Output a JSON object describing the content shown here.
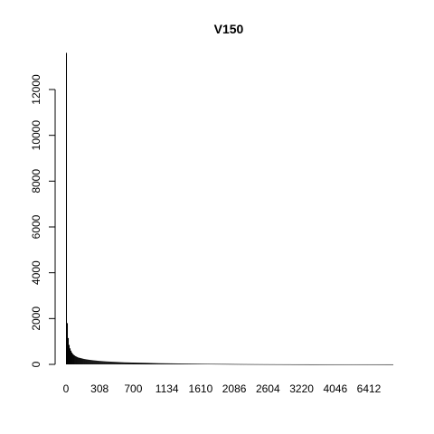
{
  "chart_data": {
    "type": "bar",
    "title": "V150",
    "xlabel": "",
    "ylabel": "",
    "ylim": [
      0,
      13500
    ],
    "y_ticks": [
      0,
      2000,
      4000,
      6000,
      8000,
      10000,
      12000
    ],
    "x_tick_labels": [
      "0",
      "308",
      "700",
      "1134",
      "1610",
      "2086",
      "2604",
      "3220",
      "4046",
      "6412"
    ],
    "bar_count": 360,
    "bar_color": "#000000",
    "grid": false,
    "legend": "none",
    "values_description_note": "",
    "values": [
      13600,
      1800,
      1150,
      850,
      700,
      600,
      520,
      460,
      420,
      390,
      360,
      340,
      320,
      300,
      290,
      280,
      270,
      260,
      250,
      240,
      232,
      225,
      218,
      212,
      206,
      200,
      195,
      190,
      185,
      180,
      176,
      172,
      168,
      164,
      160,
      156,
      152,
      149,
      146,
      143,
      140,
      137,
      134,
      131,
      128,
      126,
      124,
      122,
      120,
      118,
      116,
      114,
      112,
      110,
      108,
      106,
      104,
      102,
      100,
      98,
      96,
      94,
      92,
      90,
      88,
      87,
      86,
      85,
      84,
      83,
      82,
      81,
      80,
      79,
      78,
      77,
      76,
      75,
      74,
      73,
      72,
      71,
      70,
      69,
      68,
      67,
      66,
      65,
      64,
      63,
      62,
      61,
      60,
      59,
      58,
      57,
      56,
      55,
      54,
      53,
      52,
      51,
      50,
      50,
      49,
      49,
      48,
      48,
      47,
      47,
      46,
      46,
      45,
      45,
      44,
      44,
      43,
      43,
      42,
      42,
      41,
      41,
      40,
      40,
      39,
      39,
      38,
      38,
      37,
      37,
      36,
      36,
      35,
      35,
      34,
      34,
      33,
      33,
      32,
      32,
      31,
      31,
      30,
      30,
      29,
      29,
      28,
      28,
      27,
      27,
      26,
      26,
      25,
      25,
      25,
      24,
      24,
      24,
      23,
      23,
      23,
      22,
      22,
      22,
      21,
      21,
      21,
      20,
      20,
      20,
      19,
      19,
      19,
      18,
      18,
      18,
      17,
      17,
      17,
      16,
      16,
      16,
      15,
      15,
      15,
      14,
      14,
      14,
      13,
      13,
      13,
      12,
      12,
      12,
      12,
      11,
      11,
      11,
      11,
      10,
      10,
      10,
      10,
      9,
      9,
      9,
      9,
      8,
      8,
      8,
      8,
      8,
      7,
      7,
      7,
      7,
      7,
      6,
      6,
      6,
      6,
      6,
      6,
      5,
      5,
      5,
      5,
      5,
      5,
      5,
      4,
      4,
      4,
      4,
      4,
      4,
      4,
      4,
      3,
      3,
      3,
      3,
      3,
      3,
      3,
      3,
      3,
      3,
      2,
      2,
      2,
      2,
      2,
      2,
      2,
      2,
      2,
      2,
      2,
      2,
      2,
      2,
      2,
      2,
      2,
      2,
      2,
      2,
      1,
      1,
      1,
      1,
      1,
      1,
      1,
      1,
      1,
      1,
      1,
      1,
      1,
      1,
      1,
      1,
      1,
      1,
      1,
      1,
      1,
      1,
      1,
      1,
      1,
      1,
      1,
      1,
      1,
      1,
      1,
      1,
      1,
      1,
      1,
      1,
      1,
      1,
      1,
      1,
      1,
      1,
      1,
      1,
      1,
      1,
      1,
      1,
      1,
      1,
      1,
      1,
      1,
      1,
      1,
      1,
      1,
      1,
      1,
      1,
      1,
      1,
      1,
      1,
      1,
      1,
      1,
      1,
      1,
      1,
      1,
      1,
      1,
      1,
      1,
      1,
      1,
      1,
      1,
      1,
      1,
      1,
      1,
      1,
      1,
      1,
      1,
      1,
      1,
      1,
      1,
      1,
      1,
      1,
      1,
      1,
      1,
      1,
      1,
      1,
      1,
      1,
      1,
      1,
      1
    ]
  }
}
